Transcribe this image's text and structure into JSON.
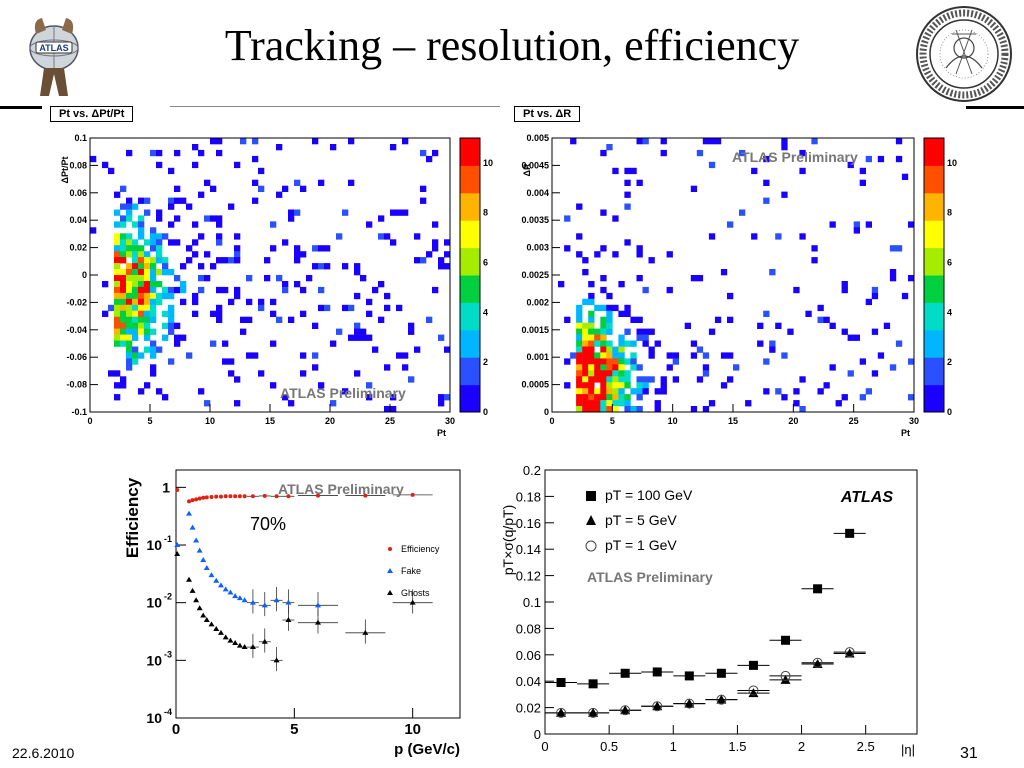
{
  "slide": {
    "title": "Tracking – resolution, efficiency",
    "date": "22.6.2010",
    "page": "31"
  },
  "logos": {
    "left": "atlas-logo",
    "right": "university-seal"
  },
  "colors": {
    "hist": [
      "#1a00ff",
      "#2a50ff",
      "#00b7ff",
      "#00dcc8",
      "#00d040",
      "#a6ec00",
      "#ffff00",
      "#ffb400",
      "#ff5000",
      "#ff0000"
    ],
    "efficiency": "#e02010",
    "fake": "#1060ff",
    "ghosts": "#000000"
  },
  "chart_data": [
    {
      "type": "heatmap",
      "tag": "Pt vs. ΔPt/Pt",
      "xlabel": "Pt",
      "ylabel": "ΔPt/Pt",
      "xlim": [
        0,
        30
      ],
      "ylim": [
        -0.1,
        0.1
      ],
      "xticks": [
        "0",
        "5",
        "10",
        "15",
        "20",
        "25",
        "30"
      ],
      "yticks": [
        "-0.1",
        "-0.08",
        "-0.06",
        "-0.04",
        "-0.02",
        "0",
        "0.02",
        "0.04",
        "0.06",
        "0.08",
        "0.1"
      ],
      "zticks": [
        "0",
        "2",
        "4",
        "6",
        "8",
        "10"
      ],
      "zlim": [
        0,
        11
      ],
      "annotation": "ATLAS Preliminary"
    },
    {
      "type": "heatmap",
      "tag": "Pt vs. ΔR",
      "xlabel": "Pt",
      "ylabel": "ΔR",
      "xlim": [
        0,
        30
      ],
      "ylim": [
        0,
        0.005
      ],
      "xticks": [
        "0",
        "5",
        "10",
        "15",
        "20",
        "25",
        "30"
      ],
      "yticks": [
        "0",
        "0.0005",
        "0.001",
        "0.0015",
        "0.002",
        "0.0025",
        "0.003",
        "0.0035",
        "0.004",
        "0.0045",
        "0.005"
      ],
      "zticks": [
        "0",
        "2",
        "4",
        "6",
        "8",
        "10"
      ],
      "zlim": [
        0,
        11
      ],
      "annotation": "ATLAS Preliminary"
    },
    {
      "type": "scatter",
      "xlabel": "p  (GeV/c)",
      "ylabel": "Efficiency",
      "xlim": [
        0,
        12
      ],
      "ylim": [
        0.0001,
        2
      ],
      "log_y": true,
      "xticks": [
        "0",
        "5",
        "10"
      ],
      "yticks": [
        "10",
        "10",
        "10",
        "10",
        "1"
      ],
      "ytick_exponents": [
        "-4",
        "-3",
        "-2",
        "-1",
        ""
      ],
      "annotation": "ATLAS Preliminary",
      "callout": "70%",
      "legend_position": "right",
      "series": [
        {
          "name": "Efficiency",
          "x": [
            0.05,
            0.55,
            0.7,
            0.85,
            1.0,
            1.15,
            1.3,
            1.5,
            1.7,
            1.9,
            2.1,
            2.3,
            2.5,
            2.7,
            2.9,
            3.25,
            3.75,
            4.25,
            4.75,
            6,
            8,
            10
          ],
          "y": [
            0.9,
            0.57,
            0.6,
            0.62,
            0.64,
            0.66,
            0.67,
            0.68,
            0.69,
            0.69,
            0.7,
            0.7,
            0.7,
            0.7,
            0.7,
            0.7,
            0.71,
            0.7,
            0.7,
            0.72,
            0.72,
            0.74
          ]
        },
        {
          "name": "Fake",
          "x": [
            0.05,
            0.55,
            0.7,
            0.85,
            1.0,
            1.15,
            1.3,
            1.5,
            1.7,
            1.9,
            2.1,
            2.3,
            2.5,
            2.7,
            2.9,
            3.25,
            3.75,
            4.25,
            4.75,
            6
          ],
          "y": [
            0.1,
            0.35,
            0.2,
            0.12,
            0.08,
            0.055,
            0.04,
            0.03,
            0.024,
            0.02,
            0.017,
            0.015,
            0.013,
            0.012,
            0.011,
            0.01,
            0.009,
            0.011,
            0.01,
            0.009
          ]
        },
        {
          "name": "Ghosts",
          "x": [
            0.05,
            0.55,
            0.7,
            0.85,
            1.0,
            1.15,
            1.3,
            1.5,
            1.7,
            1.9,
            2.1,
            2.3,
            2.5,
            2.7,
            2.9,
            3.25,
            3.75,
            4.25,
            4.75,
            6,
            8,
            10
          ],
          "y": [
            0.07,
            0.025,
            0.016,
            0.011,
            0.008,
            0.006,
            0.005,
            0.0042,
            0.0035,
            0.003,
            0.0025,
            0.0022,
            0.002,
            0.0018,
            0.0017,
            0.0017,
            0.0021,
            0.001,
            0.005,
            0.0045,
            0.003,
            0.01
          ]
        }
      ]
    },
    {
      "type": "scatter",
      "xlabel": "|η|",
      "ylabel": "pT×σ(q/pT)",
      "xlim": [
        0,
        2.9
      ],
      "ylim": [
        0,
        0.2
      ],
      "xticks": [
        "0",
        "0.5",
        "1",
        "1.5",
        "2",
        "2.5"
      ],
      "yticks": [
        "0",
        "0.02",
        "0.04",
        "0.06",
        "0.08",
        "0.1",
        "0.12",
        "0.14",
        "0.16",
        "0.18",
        "0.2"
      ],
      "annotation": "ATLAS Preliminary",
      "logo_text": "ATLAS",
      "legend_position": "top-left",
      "series": [
        {
          "name": "pT = 100 GeV",
          "marker": "square",
          "x": [
            0.125,
            0.375,
            0.625,
            0.875,
            1.125,
            1.375,
            1.625,
            1.875,
            2.125,
            2.375
          ],
          "y": [
            0.039,
            0.038,
            0.046,
            0.047,
            0.044,
            0.046,
            0.052,
            0.071,
            0.11,
            0.152
          ]
        },
        {
          "name": "pT = 5 GeV",
          "marker": "triangle",
          "x": [
            0.125,
            0.375,
            0.625,
            0.875,
            1.125,
            1.375,
            1.625,
            1.875,
            2.125,
            2.375
          ],
          "y": [
            0.016,
            0.016,
            0.018,
            0.021,
            0.023,
            0.026,
            0.031,
            0.041,
            0.053,
            0.061
          ]
        },
        {
          "name": "pT = 1 GeV",
          "marker": "circle",
          "x": [
            0.125,
            0.375,
            0.625,
            0.875,
            1.125,
            1.375,
            1.625,
            1.875,
            2.125,
            2.375
          ],
          "y": [
            0.016,
            0.016,
            0.018,
            0.021,
            0.023,
            0.026,
            0.033,
            0.044,
            0.054,
            0.062
          ]
        }
      ]
    }
  ]
}
